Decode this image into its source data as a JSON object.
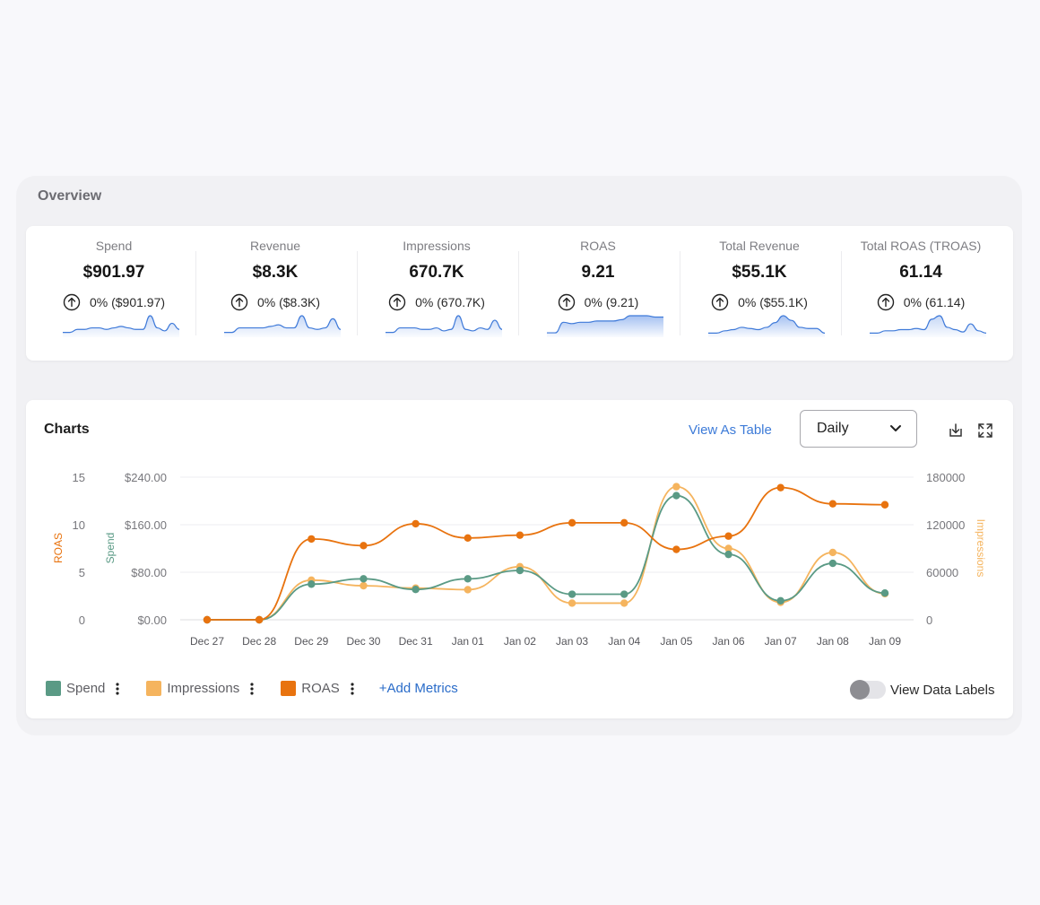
{
  "overview": {
    "title": "Overview",
    "kpis": [
      {
        "label": "Spend",
        "value": "$901.97",
        "change": "0% ($901.97)",
        "trend": [
          2,
          2,
          4,
          4,
          5,
          5,
          4,
          5,
          6,
          5,
          4,
          4,
          13,
          5,
          3,
          8,
          4
        ],
        "filled": false
      },
      {
        "label": "Revenue",
        "value": "$8.3K",
        "change": "0% ($8.3K)",
        "trend": [
          2,
          2,
          5,
          5,
          5,
          5,
          6,
          7,
          5,
          5,
          13,
          5,
          4,
          5,
          11,
          4
        ],
        "filled": false
      },
      {
        "label": "Impressions",
        "value": "670.7K",
        "change": "0% (670.7K)",
        "trend": [
          2,
          2,
          5,
          5,
          5,
          4,
          4,
          5,
          3,
          4,
          13,
          4,
          3,
          5,
          4,
          10,
          4
        ],
        "filled": false
      },
      {
        "label": "ROAS",
        "value": "9.21",
        "change": "0% (9.21)",
        "trend": [
          2,
          2,
          10,
          9,
          10,
          10,
          11,
          11,
          11,
          12,
          15,
          15,
          15,
          14,
          14
        ],
        "filled": true
      },
      {
        "label": "Total Revenue",
        "value": "$55.1K",
        "change": "0% ($55.1K)",
        "trend": [
          2,
          2,
          4,
          5,
          7,
          6,
          5,
          7,
          11,
          17,
          13,
          7,
          6,
          6,
          2
        ],
        "filled": true
      },
      {
        "label": "Total ROAS (TROAS)",
        "value": "61.14",
        "change": "0% (61.14)",
        "trend": [
          2,
          2,
          4,
          4,
          5,
          5,
          6,
          5,
          14,
          17,
          7,
          5,
          3,
          10,
          4,
          2
        ],
        "filled": false
      }
    ]
  },
  "charts": {
    "title": "Charts",
    "view_as_table": "View As Table",
    "period": "Daily",
    "legend": [
      {
        "name": "Spend",
        "color": "#5a9a85"
      },
      {
        "name": "Impressions",
        "color": "#f5b45e"
      },
      {
        "name": "ROAS",
        "color": "#e8730f"
      }
    ],
    "add_metrics": "+Add Metrics",
    "view_data_labels": "View Data Labels",
    "view_data_labels_on": false
  },
  "chart_data": {
    "type": "line",
    "categories": [
      "Dec 27",
      "Dec 28",
      "Dec 29",
      "Dec 30",
      "Dec 31",
      "Jan 01",
      "Jan 02",
      "Jan 03",
      "Jan 04",
      "Jan 05",
      "Jan 06",
      "Jan 07",
      "Jan 08",
      "Jan 09"
    ],
    "series": [
      {
        "name": "Spend",
        "axis": "Spend",
        "color": "#5a9a85",
        "values": [
          0,
          0,
          60,
          69,
          51,
          69,
          83,
          43,
          43,
          209,
          110,
          32,
          95,
          45
        ]
      },
      {
        "name": "Impressions",
        "axis": "Impressions",
        "color": "#f5b45e",
        "values": [
          0,
          0,
          50000,
          43000,
          40000,
          38000,
          67000,
          21000,
          21000,
          168000,
          90000,
          22000,
          85000,
          33000
        ]
      },
      {
        "name": "ROAS",
        "axis": "ROAS",
        "color": "#e8730f",
        "values": [
          0,
          0,
          8.5,
          7.8,
          10.1,
          8.6,
          8.9,
          10.2,
          10.2,
          7.4,
          8.8,
          13.9,
          12.2,
          12.1
        ]
      }
    ],
    "axes": {
      "roas": {
        "label": "ROAS",
        "ticks": [
          "15",
          "10",
          "5",
          "0"
        ],
        "range": [
          0,
          15
        ],
        "color": "#e8730f"
      },
      "spend": {
        "label": "Spend",
        "ticks": [
          "$240.00",
          "$160.00",
          "$80.00",
          "$0.00"
        ],
        "range": [
          0,
          240
        ],
        "color": "#5a9a85"
      },
      "impressions": {
        "label": "Impressions",
        "ticks": [
          "180000",
          "120000",
          "60000",
          "0"
        ],
        "range": [
          0,
          180000
        ],
        "color": "#f5b45e"
      }
    },
    "grid": true,
    "legend": "bottom-left"
  }
}
